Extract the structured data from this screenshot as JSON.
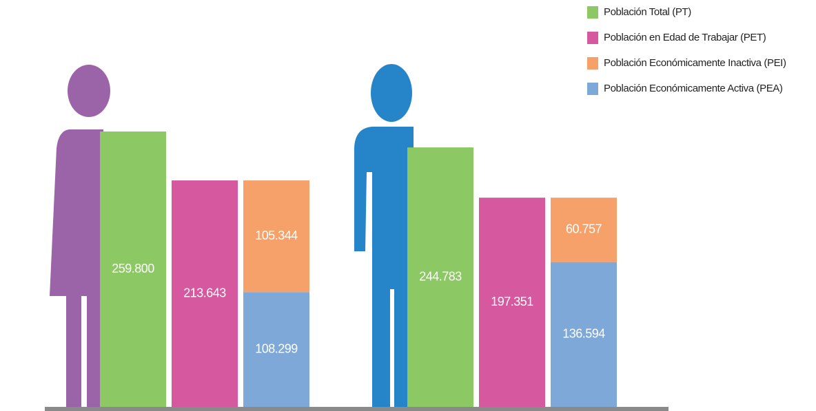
{
  "chart_data": {
    "type": "bar",
    "categories": [
      null,
      null
    ],
    "series": [
      {
        "name": "Población Total (PT)",
        "color": "#8cc863",
        "values": [
          259800,
          244783
        ],
        "value_labels": [
          "259.800",
          "244.783"
        ]
      },
      {
        "name": "Población en Edad de Trabajar (PET)",
        "color": "#d6589f",
        "values": [
          213643,
          197351
        ],
        "value_labels": [
          "213.643",
          "197.351"
        ]
      },
      {
        "name": "Población Económicamente Inactiva (PEI)",
        "color": "#f6a06a",
        "values": [
          105344,
          60757
        ],
        "value_labels": [
          "105.344",
          "60.757"
        ]
      },
      {
        "name": "Población Económicamente Activa (PEA)",
        "color": "#7ea8d8",
        "values": [
          108299,
          136594
        ],
        "value_labels": [
          "108.299",
          "136.594"
        ]
      }
    ]
  }
}
